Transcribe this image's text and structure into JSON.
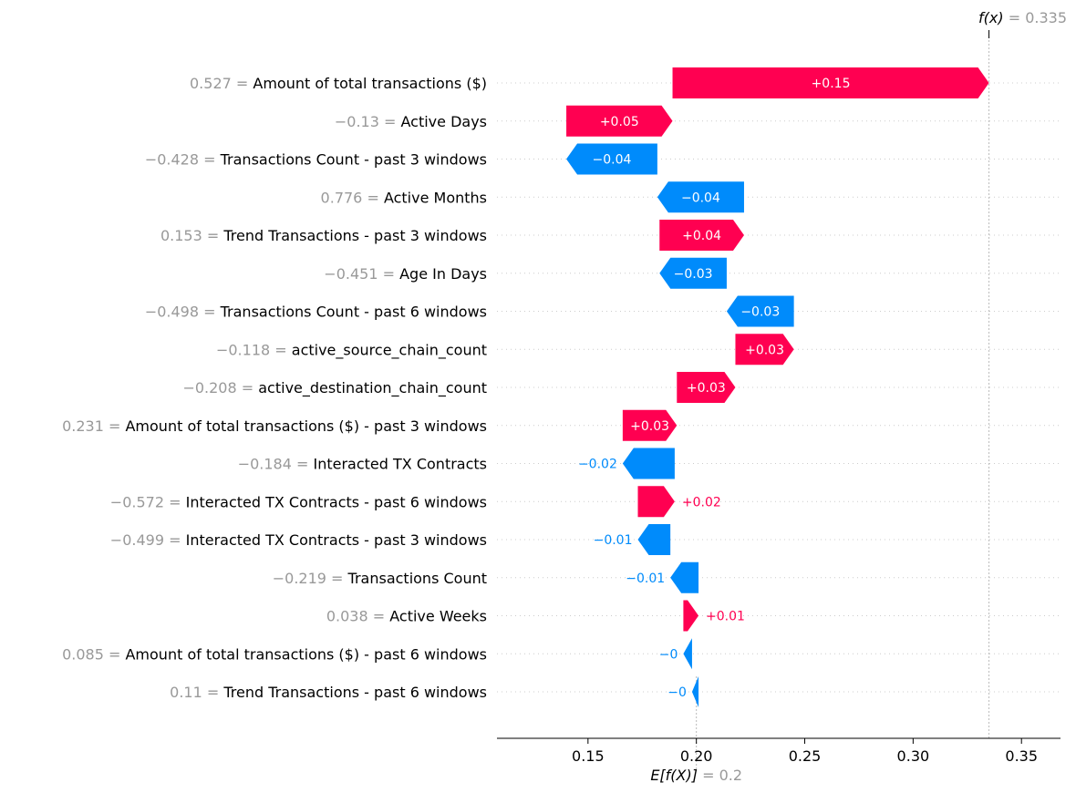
{
  "chart_data": {
    "type": "waterfall",
    "base_value": 0.2,
    "base_value_text": "0.2",
    "output_value": 0.335,
    "output_value_text": "0.335",
    "output_label": "f(x)",
    "base_label": "E[f(X)]",
    "xlim": [
      0.108,
      0.368
    ],
    "xticks": [
      "0.15",
      "0.20",
      "0.25",
      "0.30",
      "0.35"
    ],
    "xtick_values": [
      0.15,
      0.2,
      0.25,
      0.3,
      0.35
    ],
    "colors": {
      "positive": "#ff0051",
      "negative": "#008bfb"
    },
    "features": [
      {
        "value": "0.527",
        "name": "Amount of total transactions ($)",
        "shap": 0.146,
        "label": "+0.15"
      },
      {
        "value": "−0.13",
        "name": "Active Days",
        "shap": 0.049,
        "label": "+0.05"
      },
      {
        "value": "−0.428",
        "name": "Transactions Count - past 3 windows",
        "shap": -0.042,
        "label": "−0.04"
      },
      {
        "value": "0.776",
        "name": "Active Months",
        "shap": -0.04,
        "label": "−0.04"
      },
      {
        "value": "0.153",
        "name": "Trend Transactions - past 3 windows",
        "shap": 0.039,
        "label": "+0.04"
      },
      {
        "value": "−0.451",
        "name": "Age In Days",
        "shap": -0.031,
        "label": "−0.03"
      },
      {
        "value": "−0.498",
        "name": "Transactions Count - past 6 windows",
        "shap": -0.031,
        "label": "−0.03"
      },
      {
        "value": "−0.118",
        "name": "active_source_chain_count",
        "shap": 0.027,
        "label": "+0.03"
      },
      {
        "value": "−0.208",
        "name": "active_destination_chain_count",
        "shap": 0.027,
        "label": "+0.03"
      },
      {
        "value": "0.231",
        "name": "Amount of total transactions ($) - past 3 windows",
        "shap": 0.025,
        "label": "+0.03"
      },
      {
        "value": "−0.184",
        "name": "Interacted TX Contracts",
        "shap": -0.024,
        "label": "−0.02"
      },
      {
        "value": "−0.572",
        "name": "Interacted TX Contracts - past 6 windows",
        "shap": 0.017,
        "label": "+0.02"
      },
      {
        "value": "−0.499",
        "name": "Interacted TX Contracts - past 3 windows",
        "shap": -0.015,
        "label": "−0.01"
      },
      {
        "value": "−0.219",
        "name": "Transactions Count",
        "shap": -0.013,
        "label": "−0.01"
      },
      {
        "value": "0.038",
        "name": "Active Weeks",
        "shap": 0.007,
        "label": "+0.01"
      },
      {
        "value": "0.085",
        "name": "Amount of total transactions ($) - past 6 windows",
        "shap": -0.004,
        "label": "−0"
      },
      {
        "value": "0.11",
        "name": "Trend Transactions - past 6 windows",
        "shap": -0.003,
        "label": "−0"
      }
    ]
  }
}
